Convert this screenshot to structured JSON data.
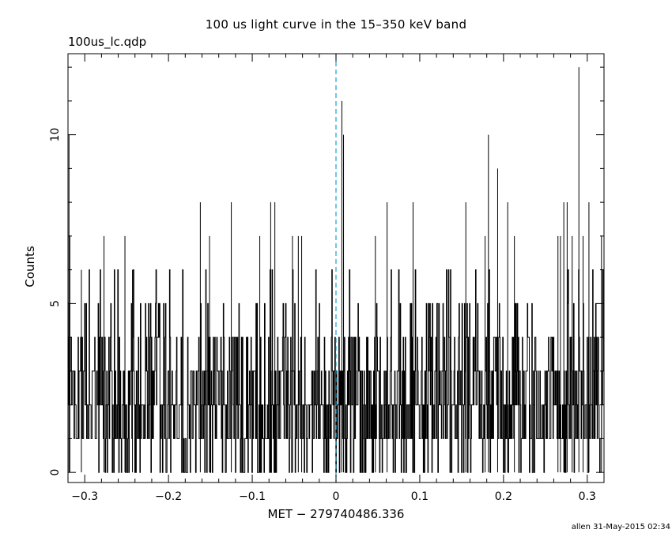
{
  "title": "100 us light curve in the 15–350 keV band",
  "subtitle": "100us_lc.qdp",
  "footer": "allen 31-May-2015 02:34",
  "chart_data": {
    "type": "line",
    "title": "100 us light curve in the 15–350 keV band",
    "xlabel": "MET − 279740486.336",
    "ylabel": "Counts",
    "xlim": [
      -0.32,
      0.32
    ],
    "ylim": [
      -0.3,
      12.4
    ],
    "x_ticks": [
      -0.3,
      -0.2,
      -0.1,
      0,
      0.1,
      0.2,
      0.3
    ],
    "x_tick_labels": [
      "−0.3",
      "−0.2",
      "−0.1",
      "0",
      "0.1",
      "0.2",
      "0.3"
    ],
    "y_ticks": [
      0,
      5,
      10
    ],
    "y_tick_labels": [
      "0",
      "5",
      "10"
    ],
    "bin_width": 0.0001,
    "reference_line": {
      "x": 0,
      "style": "dashed",
      "color": "#1a9fd8"
    },
    "series": [
      {
        "color": "#000000",
        "peaks": [
          {
            "x": -0.3188,
            "y": 10
          },
          {
            "x": -0.3178,
            "y": 7
          },
          {
            "x": -0.304,
            "y": 6
          },
          {
            "x": -0.277,
            "y": 7
          },
          {
            "x": -0.252,
            "y": 7
          },
          {
            "x": -0.243,
            "y": 6
          },
          {
            "x": -0.162,
            "y": 8
          },
          {
            "x": -0.151,
            "y": 7
          },
          {
            "x": -0.125,
            "y": 8
          },
          {
            "x": -0.091,
            "y": 7
          },
          {
            "x": -0.078,
            "y": 8
          },
          {
            "x": -0.073,
            "y": 8
          },
          {
            "x": -0.052,
            "y": 7
          },
          {
            "x": -0.045,
            "y": 7
          },
          {
            "x": -0.041,
            "y": 7
          },
          {
            "x": 0.007,
            "y": 11
          },
          {
            "x": 0.009,
            "y": 10
          },
          {
            "x": 0.047,
            "y": 7
          },
          {
            "x": 0.061,
            "y": 8
          },
          {
            "x": 0.092,
            "y": 8
          },
          {
            "x": 0.155,
            "y": 8
          },
          {
            "x": 0.178,
            "y": 7
          },
          {
            "x": 0.182,
            "y": 10
          },
          {
            "x": 0.193,
            "y": 9
          },
          {
            "x": 0.205,
            "y": 8
          },
          {
            "x": 0.213,
            "y": 7
          },
          {
            "x": 0.265,
            "y": 7
          },
          {
            "x": 0.268,
            "y": 7
          },
          {
            "x": 0.272,
            "y": 8
          },
          {
            "x": 0.276,
            "y": 8
          },
          {
            "x": 0.282,
            "y": 7
          },
          {
            "x": 0.29,
            "y": 12
          },
          {
            "x": 0.295,
            "y": 7
          },
          {
            "x": 0.302,
            "y": 8
          },
          {
            "x": 0.317,
            "y": 7
          }
        ]
      }
    ]
  }
}
